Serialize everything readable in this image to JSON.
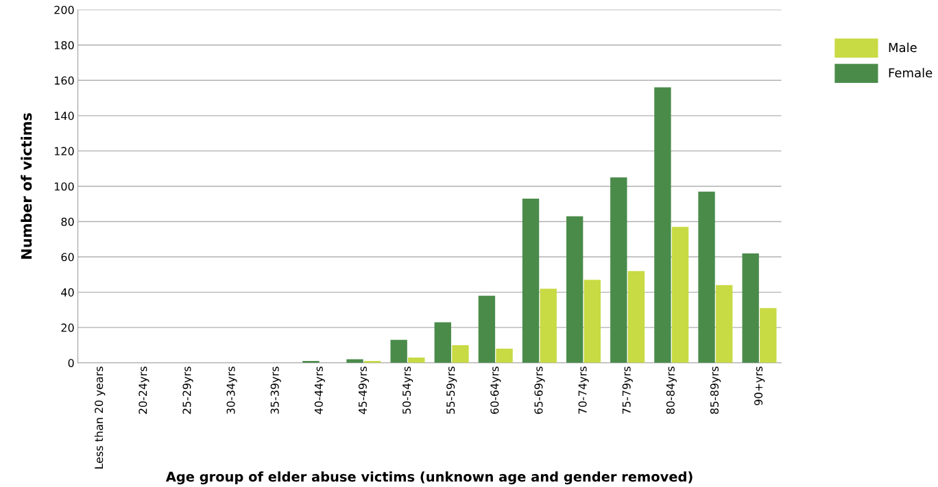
{
  "chart_data": {
    "type": "bar",
    "xlabel": "Age group of elder abuse victims (unknown age and gender removed)",
    "ylabel": "Number of victims",
    "categories": [
      "Less than 20 years",
      "20-24yrs",
      "25-29yrs",
      "30-34yrs",
      "35-39yrs",
      "40-44yrs",
      "45-49yrs",
      "50-54yrs",
      "55-59yrs",
      "60-64yrs",
      "65-69yrs",
      "70-74yrs",
      "75-79yrs",
      "80-84yrs",
      "85-89yrs",
      "90+yrs"
    ],
    "series": [
      {
        "name": "Female",
        "color": "#4a8b4a",
        "values": [
          0,
          0,
          0,
          0,
          0,
          1,
          2,
          13,
          23,
          38,
          93,
          83,
          105,
          156,
          97,
          62
        ]
      },
      {
        "name": "Male",
        "color": "#c8da44",
        "values": [
          0,
          0,
          0,
          0,
          0,
          0,
          1,
          3,
          10,
          8,
          42,
          47,
          52,
          77,
          44,
          31
        ]
      }
    ],
    "ylim": [
      0,
      200
    ],
    "yticks": [
      0,
      20,
      40,
      60,
      80,
      100,
      120,
      140,
      160,
      180,
      200
    ],
    "grid": "y",
    "legend": "top right"
  }
}
